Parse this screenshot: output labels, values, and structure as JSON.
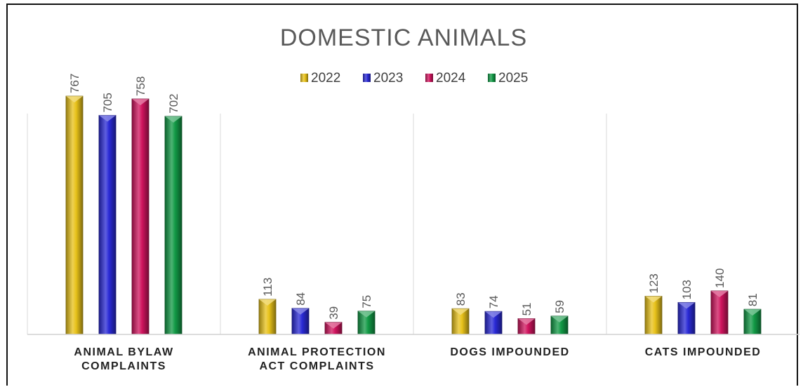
{
  "chart_data": {
    "type": "bar",
    "title": "DOMESTIC ANIMALS",
    "categories": [
      [
        "ANIMAL BYLAW",
        "COMPLAINTS"
      ],
      [
        "ANIMAL PROTECTION",
        "ACT COMPLAINTS"
      ],
      [
        "DOGS IMPOUNDED"
      ],
      [
        "CATS IMPOUNDED"
      ]
    ],
    "series": [
      {
        "name": "2022",
        "color": "#E8C21A",
        "values": [
          767,
          113,
          83,
          123
        ]
      },
      {
        "name": "2023",
        "color": "#2A2AD6",
        "values": [
          705,
          84,
          74,
          103
        ]
      },
      {
        "name": "2024",
        "color": "#D0145E",
        "values": [
          758,
          39,
          51,
          140
        ]
      },
      {
        "name": "2025",
        "color": "#129A46",
        "values": [
          702,
          75,
          59,
          81
        ]
      }
    ],
    "ylim": [
      0,
      880
    ],
    "legend_position": "top",
    "grid": false
  }
}
